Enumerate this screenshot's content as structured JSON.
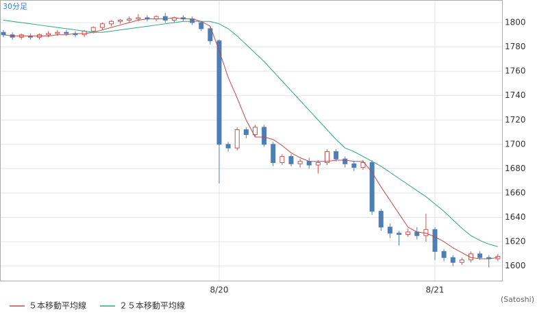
{
  "chart_data": {
    "type": "candlestick",
    "title": "30分足",
    "source": "(Satoshi)",
    "categories": [
      null,
      null,
      null,
      null,
      null,
      null,
      null,
      null,
      null,
      null,
      null,
      null,
      null,
      null,
      null,
      null,
      null,
      null,
      null,
      null,
      null,
      null,
      null,
      null,
      "8/20",
      null,
      null,
      null,
      null,
      null,
      null,
      null,
      null,
      null,
      null,
      null,
      null,
      null,
      null,
      null,
      null,
      null,
      null,
      null,
      null,
      null,
      null,
      null,
      "8/21",
      null,
      null,
      null,
      null,
      null,
      null,
      null
    ],
    "open": [
      1792,
      1790,
      1788,
      1789,
      1788,
      1790,
      1791,
      1792,
      1791,
      1790,
      1793,
      1796,
      1799,
      1801,
      1802,
      1803,
      1804,
      1803,
      1805,
      1802,
      1804,
      1803,
      1800,
      1795,
      1785,
      1700,
      1697,
      1712,
      1708,
      1714,
      1700,
      1685,
      1690,
      1684,
      1686,
      1683,
      1685,
      1694,
      1688,
      1684,
      1681,
      1685,
      1645,
      1632,
      1627,
      1626,
      1628,
      1625,
      1630,
      1612,
      1607,
      1603,
      1605,
      1610,
      1607,
      1606
    ],
    "high": [
      1794,
      1792,
      1791,
      1791,
      1791,
      1793,
      1794,
      1794,
      1793,
      1794,
      1797,
      1800,
      1802,
      1803,
      1805,
      1807,
      1806,
      1806,
      1808,
      1805,
      1806,
      1805,
      1801,
      1797,
      1786,
      1702,
      1714,
      1714,
      1716,
      1716,
      1702,
      1692,
      1692,
      1688,
      1689,
      1687,
      1696,
      1696,
      1690,
      1686,
      1687,
      1687,
      1647,
      1635,
      1629,
      1631,
      1632,
      1643,
      1632,
      1614,
      1609,
      1607,
      1612,
      1612,
      1609,
      1610
    ],
    "low": [
      1788,
      1786,
      1786,
      1786,
      1786,
      1788,
      1789,
      1789,
      1788,
      1788,
      1791,
      1794,
      1797,
      1799,
      1800,
      1801,
      1801,
      1801,
      1800,
      1800,
      1801,
      1798,
      1793,
      1782,
      1668,
      1694,
      1695,
      1705,
      1706,
      1698,
      1682,
      1683,
      1682,
      1681,
      1680,
      1676,
      1683,
      1686,
      1681,
      1678,
      1679,
      1642,
      1629,
      1623,
      1617,
      1624,
      1622,
      1620,
      1605,
      1604,
      1600,
      1601,
      1603,
      1605,
      1599,
      1604
    ],
    "close": [
      1790,
      1788,
      1790,
      1788,
      1790,
      1791,
      1792,
      1791,
      1790,
      1793,
      1796,
      1799,
      1801,
      1802,
      1803,
      1804,
      1803,
      1805,
      1802,
      1804,
      1803,
      1800,
      1795,
      1785,
      1700,
      1697,
      1712,
      1708,
      1714,
      1700,
      1685,
      1690,
      1684,
      1686,
      1683,
      1685,
      1694,
      1688,
      1684,
      1681,
      1685,
      1645,
      1632,
      1627,
      1626,
      1628,
      1625,
      1630,
      1612,
      1607,
      1603,
      1605,
      1610,
      1607,
      1606,
      1608
    ],
    "up_color": "#d05050",
    "down_color": "#4d7eb4",
    "series": [
      {
        "name": "５本移動平均線",
        "color": "#c04848",
        "values": [
          1790,
          1789,
          1789,
          1789,
          1789,
          1789,
          1790,
          1790,
          1791,
          1791,
          1792,
          1794,
          1796,
          1798,
          1800,
          1802,
          1803,
          1803,
          1803,
          1804,
          1803,
          1803,
          1801,
          1797,
          1777,
          1755,
          1738,
          1720,
          1706,
          1706,
          1704,
          1699,
          1693,
          1689,
          1686,
          1686,
          1686,
          1687,
          1687,
          1686,
          1686,
          1677,
          1665,
          1654,
          1643,
          1632,
          1628,
          1627,
          1624,
          1620,
          1615,
          1611,
          1607,
          1606,
          1606,
          1607
        ]
      },
      {
        "name": "２５本移動平均線",
        "color": "#2aa87a",
        "values": [
          1802,
          1801,
          1800,
          1799,
          1798,
          1797,
          1796,
          1795,
          1794,
          1793,
          1792,
          1792,
          1793,
          1794,
          1795,
          1796,
          1797,
          1798,
          1799,
          1800,
          1801,
          1801,
          1801,
          1801,
          1799,
          1795,
          1789,
          1782,
          1775,
          1768,
          1760,
          1752,
          1744,
          1736,
          1728,
          1720,
          1712,
          1704,
          1697,
          1694,
          1690,
          1686,
          1682,
          1677,
          1672,
          1667,
          1662,
          1657,
          1651,
          1645,
          1638,
          1631,
          1625,
          1621,
          1618,
          1616
        ]
      }
    ],
    "ylim": [
      1588,
      1818
    ],
    "yticks": [
      1600,
      1620,
      1640,
      1660,
      1680,
      1700,
      1720,
      1740,
      1760,
      1780,
      1800
    ],
    "grid": true
  }
}
